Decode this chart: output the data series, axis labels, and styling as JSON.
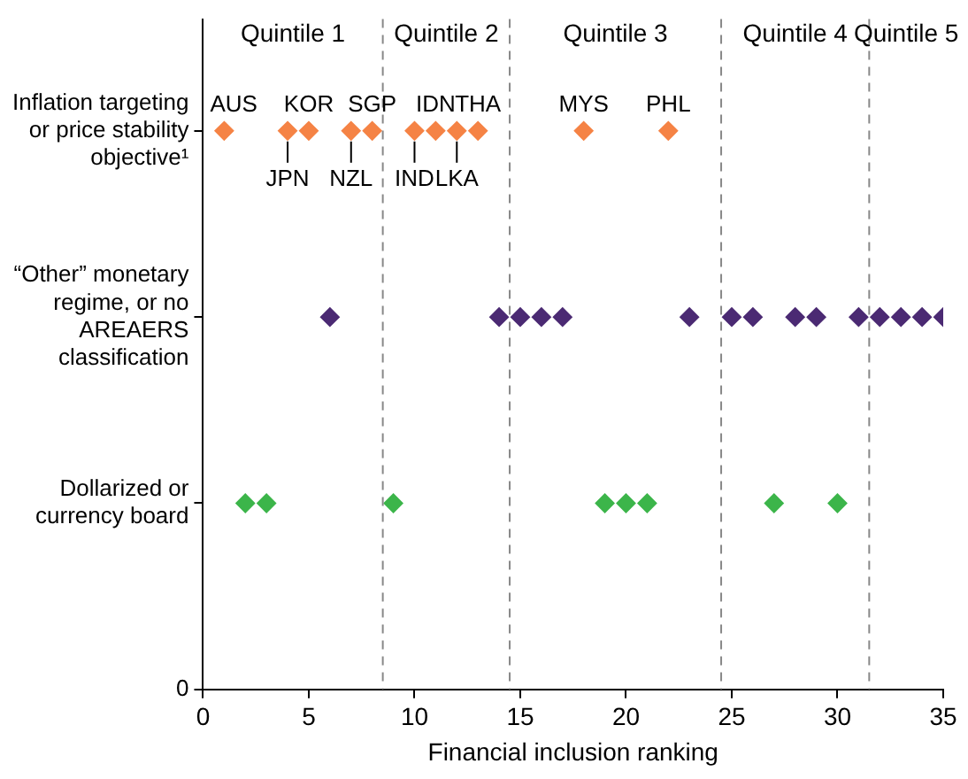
{
  "chart_data": {
    "type": "scatter",
    "orientation": "horizontal",
    "xlabel": "Financial inclusion ranking",
    "categories": [
      "Inflation targeting\nor price stability\nobjective¹",
      "“Other” monetary\nregime, or no\nAREAERS\nclassification",
      "Dollarized or\ncurrency board",
      "0"
    ],
    "xlim": [
      0,
      35
    ],
    "xticks": [
      0,
      5,
      10,
      15,
      20,
      25,
      30,
      35
    ],
    "grid": false,
    "legend": false,
    "marker": "diamond",
    "series": [
      {
        "color": "#f58345",
        "x": [
          "Inflation targeting\nor price stability\nobjective¹",
          "Inflation targeting\nor price stability\nobjective¹",
          "Inflation targeting\nor price stability\nobjective¹",
          "Inflation targeting\nor price stability\nobjective¹",
          "Inflation targeting\nor price stability\nobjective¹",
          "Inflation targeting\nor price stability\nobjective¹",
          "Inflation targeting\nor price stability\nobjective¹",
          "Inflation targeting\nor price stability\nobjective¹",
          "Inflation targeting\nor price stability\nobjective¹",
          "Inflation targeting\nor price stability\nobjective¹",
          "Inflation targeting\nor price stability\nobjective¹"
        ],
        "values": [
          1,
          4,
          5,
          7,
          8,
          10,
          11,
          12,
          13,
          18,
          22
        ]
      },
      {
        "color": "#4b2a73",
        "x": [
          "“Other” monetary\nregime, or no\nAREAERS\nclassification",
          "“Other” monetary\nregime, or no\nAREAERS\nclassification",
          "“Other” monetary\nregime, or no\nAREAERS\nclassification",
          "“Other” monetary\nregime, or no\nAREAERS\nclassification",
          "“Other” monetary\nregime, or no\nAREAERS\nclassification",
          "“Other” monetary\nregime, or no\nAREAERS\nclassification",
          "“Other” monetary\nregime, or no\nAREAERS\nclassification",
          "“Other” monetary\nregime, or no\nAREAERS\nclassification",
          "“Other” monetary\nregime, or no\nAREAERS\nclassification",
          "“Other” monetary\nregime, or no\nAREAERS\nclassification",
          "“Other” monetary\nregime, or no\nAREAERS\nclassification",
          "“Other” monetary\nregime, or no\nAREAERS\nclassification",
          "“Other” monetary\nregime, or no\nAREAERS\nclassification",
          "“Other” monetary\nregime, or no\nAREAERS\nclassification",
          "“Other” monetary\nregime, or no\nAREAERS\nclassification"
        ],
        "values": [
          6,
          14,
          15,
          16,
          17,
          23,
          25,
          26,
          28,
          29,
          31,
          32,
          33,
          34,
          35
        ]
      },
      {
        "color": "#3cb54a",
        "x": [
          "Dollarized or\ncurrency board",
          "Dollarized or\ncurrency board",
          "Dollarized or\ncurrency board",
          "Dollarized or\ncurrency board",
          "Dollarized or\ncurrency board",
          "Dollarized or\ncurrency board",
          "Dollarized or\ncurrency board",
          "Dollarized or\ncurrency board"
        ],
        "values": [
          2,
          3,
          9,
          19,
          20,
          21,
          27,
          30
        ]
      }
    ],
    "ref_lines": [
      {
        "axis": "x",
        "value": 8.5,
        "color": "#888888",
        "line_style": "dashed"
      },
      {
        "axis": "x",
        "value": 14.5,
        "color": "#888888",
        "line_style": "dashed"
      },
      {
        "axis": "x",
        "value": 24.5,
        "color": "#888888",
        "line_style": "dashed"
      },
      {
        "axis": "x",
        "value": 31.5,
        "color": "#888888",
        "line_style": "dashed"
      }
    ],
    "annotations": [
      "Quintile 1",
      "Quintile 2",
      "Quintile 3",
      "Quintile 4",
      "Quintile 5",
      {
        "text": "AUS",
        "x": 1,
        "y": "Inflation targeting\nor price stability\nobjective¹"
      },
      {
        "text": "JPN",
        "x": 4,
        "y": "Inflation targeting\nor price stability\nobjective¹"
      },
      {
        "text": "KOR",
        "x": 5,
        "y": "Inflation targeting\nor price stability\nobjective¹"
      },
      {
        "text": "NZL",
        "x": 7,
        "y": "Inflation targeting\nor price stability\nobjective¹"
      },
      {
        "text": "SGP",
        "x": 8,
        "y": "Inflation targeting\nor price stability\nobjective¹"
      },
      {
        "text": "IND",
        "x": 10,
        "y": "Inflation targeting\nor price stability\nobjective¹"
      },
      {
        "text": "IDN",
        "x": 11,
        "y": "Inflation targeting\nor price stability\nobjective¹"
      },
      {
        "text": "LKA",
        "x": 12,
        "y": "Inflation targeting\nor price stability\nobjective¹"
      },
      {
        "text": "THA",
        "x": 13,
        "y": "Inflation targeting\nor price stability\nobjective¹"
      },
      {
        "text": "MYS",
        "x": 18,
        "y": "Inflation targeting\nor price stability\nobjective¹"
      },
      {
        "text": "PHL",
        "x": 22,
        "y": "Inflation targeting\nor price stability\nobjective¹"
      }
    ]
  }
}
